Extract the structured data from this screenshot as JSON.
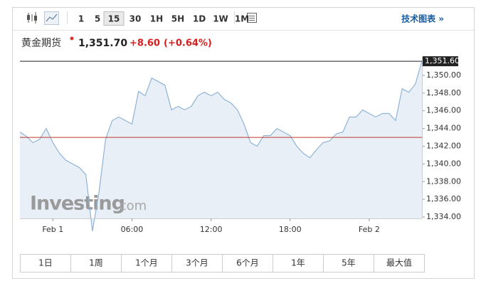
{
  "toolbar": {
    "intervals": [
      "1",
      "5",
      "15",
      "30",
      "1H",
      "5H",
      "1D",
      "1W",
      "1M"
    ],
    "active": "15",
    "link": "技术图表 »"
  },
  "header": {
    "name": "黄金期货",
    "price": "1,351.70",
    "change": "+8.60",
    "change_pct": "(+0.64%)"
  },
  "watermark": {
    "brand": "Investing",
    "domain": ".com"
  },
  "ranges": [
    "1日",
    "1周",
    "1个月",
    "3个月",
    "6个月",
    "1年",
    "5年",
    "最大值"
  ],
  "chart_data": {
    "type": "area",
    "color": "#8fb3d6",
    "fill": "#e8eff7",
    "categories": [
      null,
      null,
      null,
      null,
      null,
      "Feb 1",
      null,
      null,
      null,
      null,
      null,
      null,
      null,
      null,
      null,
      null,
      null,
      "06:00",
      null,
      null,
      null,
      null,
      null,
      null,
      null,
      null,
      null,
      null,
      null,
      "12:00",
      null,
      null,
      null,
      null,
      null,
      null,
      null,
      null,
      null,
      null,
      null,
      "18:00",
      null,
      null,
      null,
      null,
      null,
      null,
      null,
      null,
      null,
      null,
      null,
      "Feb 2",
      null,
      null,
      null,
      null,
      null,
      null,
      null,
      null
    ],
    "series": [
      {
        "values": [
          1343.6,
          1343.1,
          1342.4,
          1342.8,
          1344.0,
          1342.4,
          1341.2,
          1340.4,
          1340.0,
          1339.6,
          1338.8,
          1332.4,
          1336.8,
          1342.8,
          1344.9,
          1345.3,
          1344.9,
          1344.5,
          1348.2,
          1347.7,
          1349.7,
          1349.3,
          1348.9,
          1346.1,
          1346.5,
          1346.1,
          1346.5,
          1347.7,
          1348.1,
          1347.7,
          1348.1,
          1347.3,
          1346.9,
          1346.1,
          1344.5,
          1342.4,
          1342.0,
          1343.2,
          1343.2,
          1344.0,
          1343.6,
          1343.2,
          1342.0,
          1341.2,
          1340.7,
          1341.6,
          1342.4,
          1342.6,
          1343.4,
          1343.6,
          1345.3,
          1345.3,
          1346.1,
          1345.7,
          1345.3,
          1345.7,
          1345.7,
          1344.9,
          1348.5,
          1348.1,
          1349.0,
          1351.6
        ]
      }
    ],
    "ylim": [
      1333.84,
      1352.09
    ],
    "yticks": [
      {
        "value": 1334,
        "label": "1,334.00"
      },
      {
        "value": 1336,
        "label": "1,336.00"
      },
      {
        "value": 1338,
        "label": "1,338.00"
      },
      {
        "value": 1340,
        "label": "1,340.00"
      },
      {
        "value": 1342,
        "label": "1,342.00"
      },
      {
        "value": 1344,
        "label": "1,344.00"
      },
      {
        "value": 1346,
        "label": "1,346.00"
      },
      {
        "value": 1348,
        "label": "1,348.00"
      },
      {
        "value": 1350,
        "label": "1,350.00"
      }
    ],
    "reference_lines": [
      {
        "value": 1351.6,
        "label": "1,351.60",
        "color": "#222222"
      },
      {
        "value": 1343,
        "color": "#c0392b"
      }
    ]
  }
}
